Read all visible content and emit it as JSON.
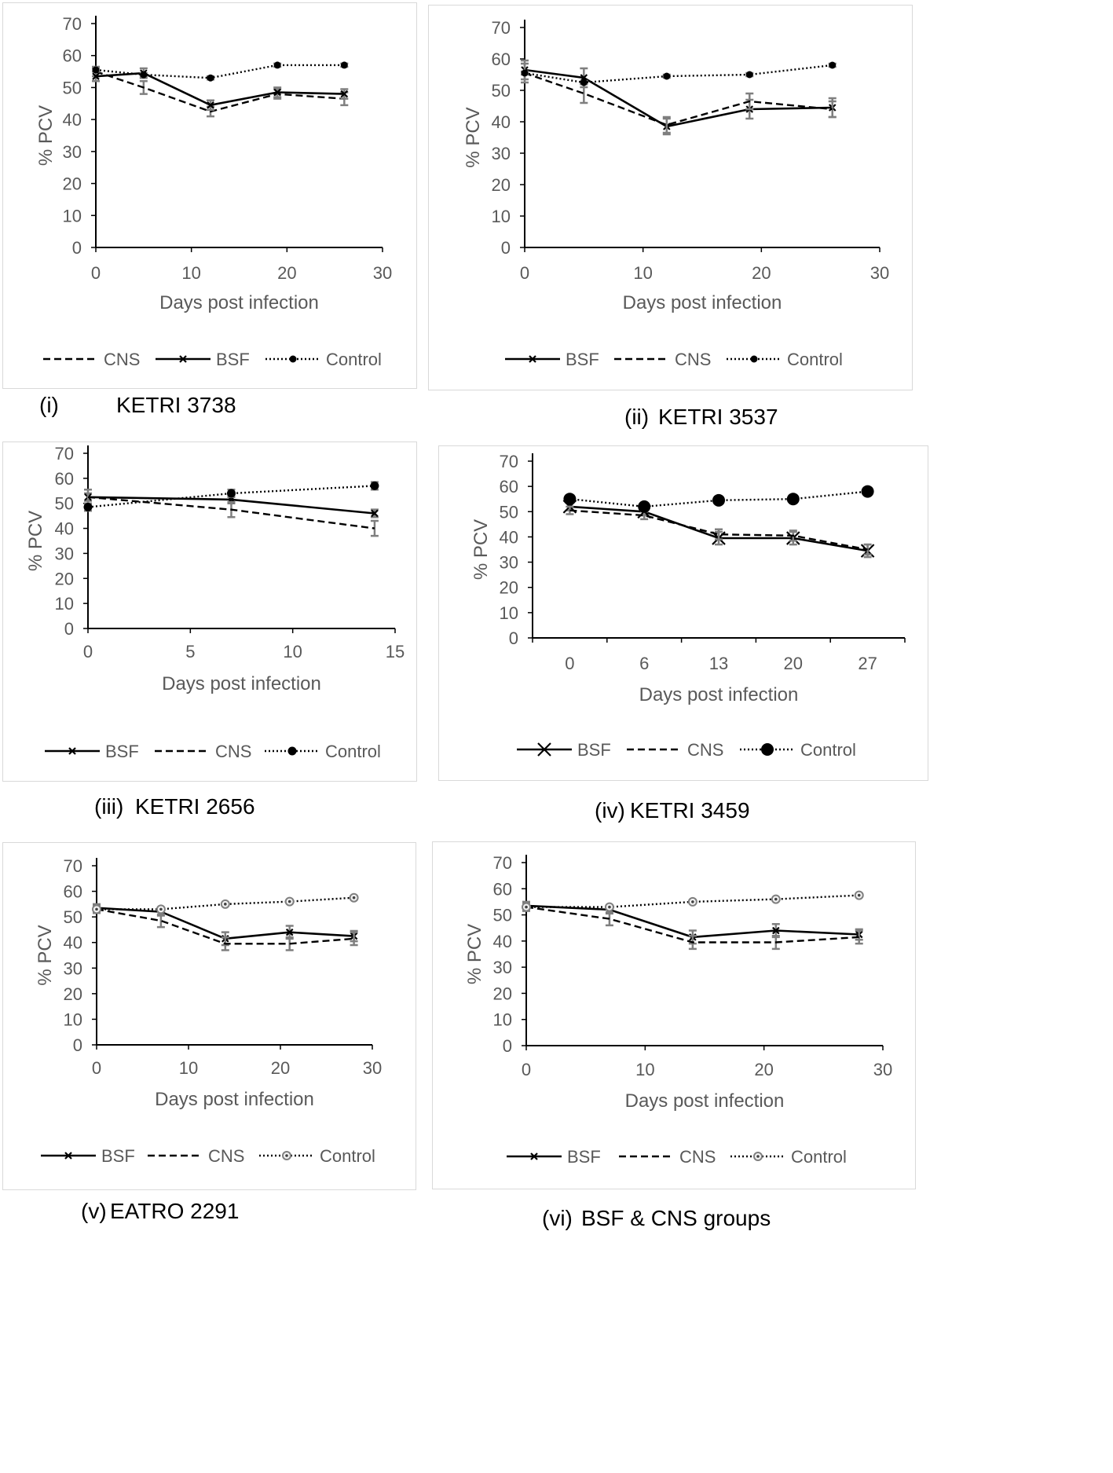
{
  "panels": [
    {
      "caption_id": "(i)",
      "caption_text": "KETRI 3738"
    },
    {
      "caption_id": "(ii)",
      "caption_text": "KETRI 3537"
    },
    {
      "caption_id": "(iii)",
      "caption_text": "KETRI 2656"
    },
    {
      "caption_id": "(iv)",
      "caption_text": "KETRI 3459"
    },
    {
      "caption_id": "(v)",
      "caption_text": "EATRO 2291"
    },
    {
      "caption_id": "(vi)",
      "caption_text": "BSF & CNS groups"
    }
  ],
  "chart_data": [
    {
      "type": "line",
      "ylabel": "% PCV",
      "xlabel": "Days post infection",
      "ylim": [
        0,
        70
      ],
      "yticks": [
        0,
        10,
        20,
        30,
        40,
        50,
        60,
        70
      ],
      "xlim": [
        0,
        30
      ],
      "xticks": [
        0,
        10,
        20,
        30
      ],
      "legend_position": "bottom",
      "series": [
        {
          "name": "CNS",
          "style": "dashed",
          "marker": "none",
          "x": [
            0,
            5,
            12,
            19,
            26
          ],
          "values": [
            55,
            50,
            42.5,
            48,
            46.5
          ],
          "errors": [
            1.5,
            2,
            1.5,
            1.5,
            2
          ]
        },
        {
          "name": "BSF",
          "style": "solid",
          "marker": "x-small",
          "x": [
            0,
            5,
            12,
            19,
            26
          ],
          "values": [
            53.5,
            54.5,
            44.5,
            48.5,
            48
          ],
          "errors": [
            1.5,
            1.5,
            1.5,
            1.5,
            1.5
          ]
        },
        {
          "name": "Control",
          "style": "dotted",
          "marker": "dot-small",
          "x": [
            0,
            5,
            12,
            19,
            26
          ],
          "values": [
            55.5,
            54,
            53,
            57,
            57
          ],
          "errors": [
            0.5,
            0.5,
            0.5,
            0.5,
            0.5
          ]
        }
      ]
    },
    {
      "type": "line",
      "ylabel": "% PCV",
      "xlabel": "Days post infection",
      "ylim": [
        0,
        70
      ],
      "yticks": [
        0,
        10,
        20,
        30,
        40,
        50,
        60,
        70
      ],
      "xlim": [
        0,
        30
      ],
      "xticks": [
        0,
        10,
        20,
        30
      ],
      "legend_position": "bottom",
      "series": [
        {
          "name": "BSF",
          "style": "solid",
          "marker": "x-small",
          "x": [
            0,
            5,
            12,
            19,
            26
          ],
          "values": [
            56.5,
            54,
            38.5,
            44,
            44.5
          ],
          "errors": [
            3,
            3,
            2.5,
            3,
            3
          ]
        },
        {
          "name": "CNS",
          "style": "dashed",
          "marker": "none",
          "x": [
            0,
            5,
            12,
            19,
            26
          ],
          "values": [
            55.5,
            49,
            39,
            46.5,
            44
          ],
          "errors": [
            3,
            3,
            2.5,
            2.5,
            2.5
          ]
        },
        {
          "name": "Control",
          "style": "dotted",
          "marker": "dot-small",
          "x": [
            0,
            5,
            12,
            19,
            26
          ],
          "values": [
            55.5,
            52.5,
            54.5,
            55,
            58
          ],
          "errors": [
            0.5,
            0.5,
            0.5,
            0.5,
            0.5
          ]
        }
      ]
    },
    {
      "type": "line",
      "ylabel": "% PCV",
      "xlabel": "Days post infection",
      "ylim": [
        0,
        70
      ],
      "yticks": [
        0,
        10,
        20,
        30,
        40,
        50,
        60,
        70
      ],
      "xlim": [
        0,
        15
      ],
      "xticks": [
        0,
        5,
        10,
        15
      ],
      "legend_position": "bottom",
      "series": [
        {
          "name": "BSF",
          "style": "solid",
          "marker": "x-small",
          "x": [
            0,
            7,
            14
          ],
          "values": [
            52.5,
            51.5,
            46
          ],
          "errors": [
            1.5,
            1.5,
            1.5
          ]
        },
        {
          "name": "CNS",
          "style": "dashed",
          "marker": "none",
          "x": [
            0,
            7,
            14
          ],
          "values": [
            52.5,
            47.5,
            40
          ],
          "errors": [
            3,
            3,
            3
          ]
        },
        {
          "name": "Control",
          "style": "dotted",
          "marker": "dot",
          "x": [
            0,
            7,
            14
          ],
          "values": [
            48.5,
            54,
            57
          ],
          "errors": [
            1.5,
            1.5,
            1.5
          ]
        }
      ]
    },
    {
      "type": "line",
      "ylabel": "% PCV",
      "xlabel": "Days post infection",
      "ylim": [
        0,
        70
      ],
      "yticks": [
        0,
        10,
        20,
        30,
        40,
        50,
        60,
        70
      ],
      "categories": [
        "0",
        "6",
        "13",
        "20",
        "27"
      ],
      "legend_position": "bottom",
      "series": [
        {
          "name": "BSF",
          "style": "solid",
          "marker": "x-large",
          "values": [
            52,
            50,
            39.5,
            39.5,
            34.5
          ],
          "errors": [
            1.5,
            1.5,
            2.5,
            2.5,
            2.5
          ]
        },
        {
          "name": "CNS",
          "style": "dashed",
          "marker": "none",
          "values": [
            50.5,
            48.5,
            41,
            40.5,
            35
          ],
          "errors": [
            1.5,
            1.5,
            2,
            2,
            2
          ]
        },
        {
          "name": "Control",
          "style": "dotted",
          "marker": "dot-large",
          "values": [
            55,
            52,
            54.5,
            55,
            58
          ],
          "errors": [
            0,
            0,
            0,
            0,
            0
          ]
        }
      ]
    },
    {
      "type": "line",
      "ylabel": "% PCV",
      "xlabel": "Days post infection",
      "ylim": [
        0,
        70
      ],
      "yticks": [
        0,
        10,
        20,
        30,
        40,
        50,
        60,
        70
      ],
      "xlim": [
        0,
        30
      ],
      "xticks": [
        0,
        10,
        20,
        30
      ],
      "legend_position": "bottom",
      "series": [
        {
          "name": "BSF",
          "style": "solid",
          "marker": "x-small",
          "x": [
            0,
            7,
            14,
            21,
            28
          ],
          "values": [
            53.5,
            52,
            41.5,
            44,
            42.5
          ],
          "errors": [
            1.5,
            1.5,
            2.5,
            2.5,
            2
          ]
        },
        {
          "name": "CNS",
          "style": "dashed",
          "marker": "none",
          "x": [
            0,
            7,
            14,
            21,
            28
          ],
          "values": [
            53,
            48.5,
            39.5,
            39.5,
            41.5
          ],
          "errors": [
            1.5,
            2.5,
            2.5,
            2.5,
            2.5
          ]
        },
        {
          "name": "Control",
          "style": "dotted",
          "marker": "ring",
          "x": [
            0,
            7,
            14,
            21,
            28
          ],
          "values": [
            53,
            53,
            55,
            56,
            57.5
          ],
          "errors": [
            0.5,
            0.5,
            0.5,
            0.5,
            0.5
          ]
        }
      ]
    },
    {
      "type": "line",
      "ylabel": "% PCV",
      "xlabel": "Days post infection",
      "ylim": [
        0,
        70
      ],
      "yticks": [
        0,
        10,
        20,
        30,
        40,
        50,
        60,
        70
      ],
      "xlim": [
        0,
        30
      ],
      "xticks": [
        0,
        10,
        20,
        30
      ],
      "legend_position": "bottom",
      "series": [
        {
          "name": "BSF",
          "style": "solid",
          "marker": "x-small",
          "x": [
            0,
            7,
            14,
            21,
            28
          ],
          "values": [
            53.5,
            52,
            41.5,
            44,
            42.5
          ],
          "errors": [
            1.5,
            1.5,
            2.5,
            2.5,
            2
          ]
        },
        {
          "name": "CNS",
          "style": "dashed",
          "marker": "none",
          "x": [
            0,
            7,
            14,
            21,
            28
          ],
          "values": [
            53,
            48.5,
            39.5,
            39.5,
            41.5
          ],
          "errors": [
            1.5,
            2.5,
            2.5,
            2.5,
            2.5
          ]
        },
        {
          "name": "Control",
          "style": "dotted",
          "marker": "ring",
          "x": [
            0,
            7,
            14,
            21,
            28
          ],
          "values": [
            53,
            53,
            55,
            56,
            57.5
          ],
          "errors": [
            0.5,
            0.5,
            0.5,
            0.5,
            0.5
          ]
        }
      ]
    }
  ]
}
